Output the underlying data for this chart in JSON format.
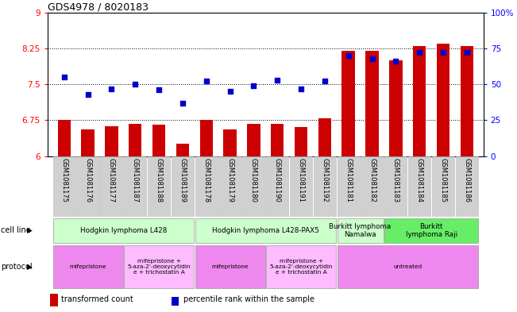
{
  "title": "GDS4978 / 8020183",
  "samples": [
    "GSM1081175",
    "GSM1081176",
    "GSM1081177",
    "GSM1081187",
    "GSM1081188",
    "GSM1081189",
    "GSM1081178",
    "GSM1081179",
    "GSM1081180",
    "GSM1081190",
    "GSM1081191",
    "GSM1081192",
    "GSM1081181",
    "GSM1081182",
    "GSM1081183",
    "GSM1081184",
    "GSM1081185",
    "GSM1081186"
  ],
  "bar_values": [
    6.75,
    6.55,
    6.62,
    6.68,
    6.65,
    6.25,
    6.75,
    6.55,
    6.68,
    6.68,
    6.6,
    6.78,
    8.2,
    8.2,
    8.0,
    8.3,
    8.35,
    8.3
  ],
  "dot_values": [
    55,
    43,
    47,
    50,
    46,
    37,
    52,
    45,
    49,
    53,
    47,
    52,
    70,
    68,
    66,
    72,
    72,
    72
  ],
  "bar_color": "#cc0000",
  "dot_color": "#0000cc",
  "ylim_left": [
    6.0,
    9.0
  ],
  "ylim_right": [
    0,
    100
  ],
  "yticks_left": [
    6.0,
    6.75,
    7.5,
    8.25,
    9.0
  ],
  "ytick_labels_left": [
    "6",
    "6.75",
    "7.5",
    "8.25",
    "9"
  ],
  "yticks_right": [
    0,
    25,
    50,
    75,
    100
  ],
  "ytick_labels_right": [
    "0",
    "25",
    "50",
    "75",
    "100%"
  ],
  "hlines": [
    6.75,
    7.5,
    8.25
  ],
  "cell_line_groups": [
    {
      "label": "Hodgkin lymphoma L428",
      "start": 0,
      "end": 5,
      "color": "#ccffcc"
    },
    {
      "label": "Hodgkin lymphoma L428-PAX5",
      "start": 6,
      "end": 11,
      "color": "#ccffcc"
    },
    {
      "label": "Burkitt lymphoma\nNamalwa",
      "start": 12,
      "end": 13,
      "color": "#ccffcc"
    },
    {
      "label": "Burkitt\nlymphoma Raji",
      "start": 14,
      "end": 17,
      "color": "#66ee66"
    }
  ],
  "protocol_groups": [
    {
      "label": "mifepristone",
      "start": 0,
      "end": 2,
      "color": "#ee88ee"
    },
    {
      "label": "mifepristone +\n5-aza-2'-deoxycytidin\ne + trichostatin A",
      "start": 3,
      "end": 5,
      "color": "#ffbbff"
    },
    {
      "label": "mifepristone",
      "start": 6,
      "end": 8,
      "color": "#ee88ee"
    },
    {
      "label": "mifepristone +\n5-aza-2'-deoxycytidin\ne + trichostatin A",
      "start": 9,
      "end": 11,
      "color": "#ffbbff"
    },
    {
      "label": "untreated",
      "start": 12,
      "end": 17,
      "color": "#ee88ee"
    }
  ],
  "legend_bar_label": "transformed count",
  "legend_dot_label": "percentile rank within the sample",
  "cell_line_row_label": "cell line",
  "protocol_row_label": "protocol",
  "sample_bg_color": "#d0d0d0",
  "sample_border_color": "#bbbbbb"
}
